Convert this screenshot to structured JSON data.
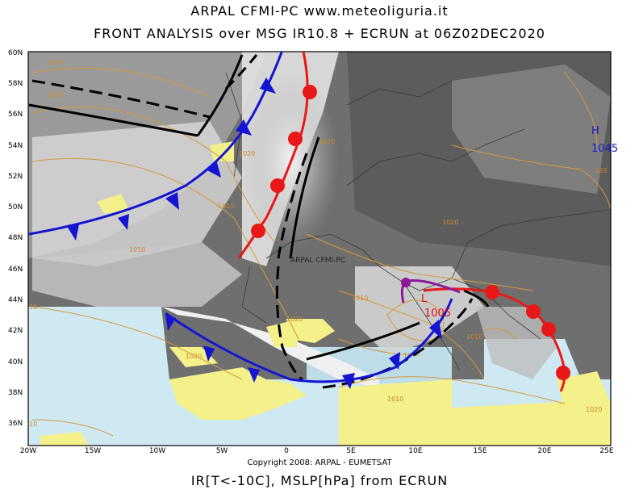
{
  "header": {
    "line1": "ARPAL   CFMI-PC   www.meteoliguria.it",
    "line2": "FRONT ANALYSIS over MSG IR10.8 + ECRUN at 06Z02DEC2020"
  },
  "footer": {
    "copyright": "Copyright 2008: ARPAL - EUMETSAT",
    "caption": "IR[T<-10C], MSLP[hPa] from ECRUN"
  },
  "map": {
    "watermark": "ARPAL CFMI-PC",
    "lat_labels": [
      "60N",
      "58N",
      "56N",
      "54N",
      "52N",
      "50N",
      "48N",
      "46N",
      "44N",
      "42N",
      "40N",
      "38N",
      "36N"
    ],
    "lon_labels": [
      "20W",
      "15W",
      "10W",
      "5W",
      "0",
      "5E",
      "10E",
      "15E",
      "20E",
      "25E"
    ],
    "isobar_labels": [
      "1000",
      "1010",
      "1010",
      "1020",
      "1020",
      "1010",
      "1020",
      "1010",
      "1020",
      "1010",
      "1020",
      "1010",
      "1020",
      "10",
      "10",
      "10",
      "101"
    ],
    "pressure_centers": {
      "high": {
        "letter": "H",
        "value": "1045"
      },
      "low": {
        "letter": "L",
        "value": "1005"
      }
    },
    "colors": {
      "cold_front": "#1414d2",
      "warm_front": "#e81818",
      "occlusion": "#8a1a9a",
      "trough": "#000000",
      "isobar": "#d59a3a",
      "land_warm": "#f4f08a",
      "sea_cold": "#cfe9f3"
    }
  }
}
